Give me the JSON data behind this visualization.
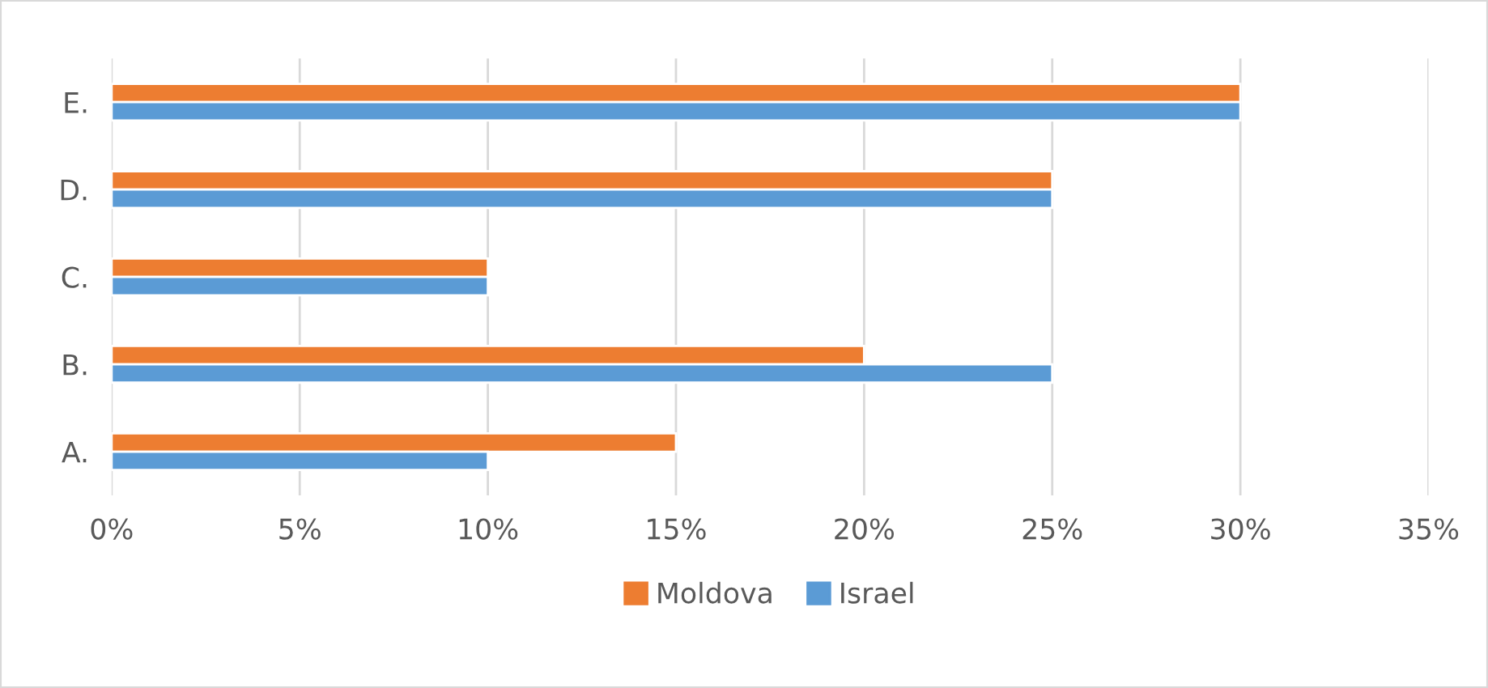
{
  "chart_data": {
    "type": "bar",
    "orientation": "horizontal",
    "categories": [
      "E.",
      "D.",
      "C.",
      "B.",
      "A."
    ],
    "series": [
      {
        "name": "Moldova",
        "color": "#ed7d31",
        "values": [
          30,
          25,
          10,
          20,
          15
        ]
      },
      {
        "name": "Israel",
        "color": "#5b9bd5",
        "values": [
          30,
          25,
          10,
          25,
          10
        ]
      }
    ],
    "xlim": [
      0,
      35
    ],
    "xticks": [
      {
        "value": 0,
        "label": "0%"
      },
      {
        "value": 5,
        "label": "5%"
      },
      {
        "value": 10,
        "label": "10%"
      },
      {
        "value": 15,
        "label": "15%"
      },
      {
        "value": 20,
        "label": "20%"
      },
      {
        "value": 25,
        "label": "25%"
      },
      {
        "value": 30,
        "label": "30%"
      },
      {
        "value": 35,
        "label": "35%"
      }
    ],
    "grid": "x",
    "legend": "bottom"
  }
}
